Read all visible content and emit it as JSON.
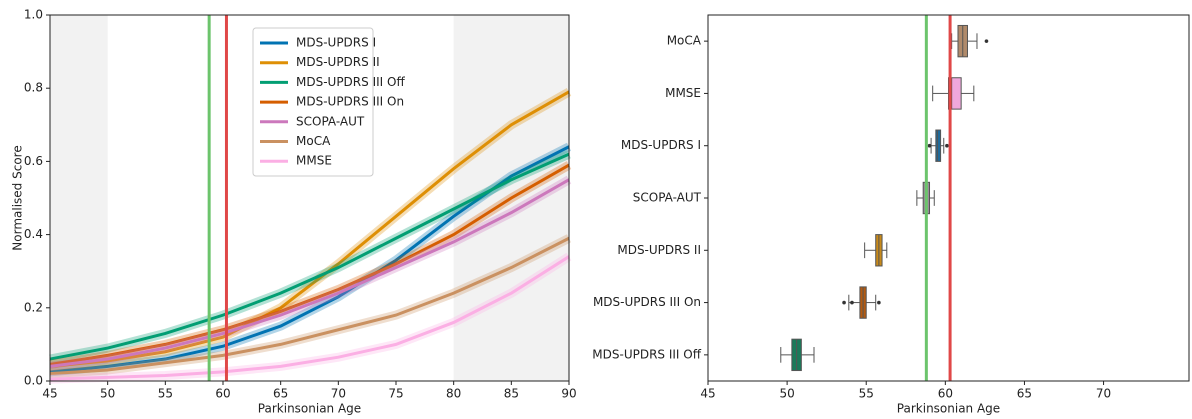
{
  "chart_data": [
    {
      "type": "line",
      "xlabel": "Parkinsonian Age",
      "ylabel": "Normalised Score",
      "x": [
        45,
        50,
        55,
        60,
        65,
        70,
        75,
        80,
        85,
        90
      ],
      "series": [
        {
          "name": "MDS-UPDRS I",
          "color": "#0173b2",
          "values": [
            0.025,
            0.04,
            0.06,
            0.095,
            0.15,
            0.23,
            0.33,
            0.45,
            0.56,
            0.64
          ]
        },
        {
          "name": "MDS-UPDRS II",
          "color": "#de8f05",
          "values": [
            0.04,
            0.055,
            0.08,
            0.12,
            0.2,
            0.32,
            0.45,
            0.58,
            0.7,
            0.79
          ]
        },
        {
          "name": "MDS-UPDRS III Off",
          "color": "#029e73",
          "values": [
            0.06,
            0.09,
            0.13,
            0.18,
            0.24,
            0.31,
            0.39,
            0.47,
            0.55,
            0.62
          ]
        },
        {
          "name": "MDS-UPDRS III On",
          "color": "#d55e00",
          "values": [
            0.045,
            0.07,
            0.1,
            0.14,
            0.19,
            0.25,
            0.32,
            0.4,
            0.5,
            0.59
          ]
        },
        {
          "name": "SCOPA-AUT",
          "color": "#cc78bc",
          "values": [
            0.04,
            0.06,
            0.09,
            0.13,
            0.18,
            0.24,
            0.31,
            0.38,
            0.46,
            0.55
          ]
        },
        {
          "name": "MoCA",
          "color": "#ca9161",
          "values": [
            0.02,
            0.03,
            0.05,
            0.07,
            0.1,
            0.14,
            0.18,
            0.24,
            0.31,
            0.39
          ]
        },
        {
          "name": "MMSE",
          "color": "#fbafe4",
          "values": [
            0.005,
            0.01,
            0.015,
            0.025,
            0.04,
            0.065,
            0.1,
            0.16,
            0.24,
            0.34
          ]
        }
      ],
      "xlim": [
        45,
        90
      ],
      "ylim": [
        0,
        1
      ],
      "xticks": [
        45,
        50,
        55,
        60,
        65,
        70,
        75,
        80,
        85,
        90
      ],
      "yticks": [
        {
          "value": 0,
          "label": "0.0"
        },
        {
          "value": 0.2,
          "label": "0.2"
        },
        {
          "value": 0.4,
          "label": "0.4"
        },
        {
          "value": 0.6,
          "label": "0.6"
        },
        {
          "value": 0.8,
          "label": "0.8"
        },
        {
          "value": 1,
          "label": "1.0"
        }
      ],
      "shaded_ranges": [
        [
          45,
          50
        ],
        [
          80,
          90
        ]
      ],
      "vlines": [
        {
          "value": 58.8,
          "color": "#6cc46c"
        },
        {
          "value": 60.3,
          "color": "#e04848"
        }
      ]
    },
    {
      "type": "boxplot",
      "xlabel": "Parkinsonian Age",
      "categories": [
        "MoCA",
        "MMSE",
        "MDS-UPDRS I",
        "SCOPA-AUT",
        "MDS-UPDRS II",
        "MDS-UPDRS III On",
        "MDS-UPDRS III Off"
      ],
      "colors": [
        "#b08a6a",
        "#f0a8dc",
        "#1f6a9a",
        "#9a8a9a",
        "#c88a1a",
        "#b35a10",
        "#1a7a5a"
      ],
      "boxes": [
        {
          "whislo": 60.4,
          "q1": 60.8,
          "med": 61.1,
          "q3": 61.4,
          "whishi": 62.0,
          "fliers": [
            62.6
          ]
        },
        {
          "whislo": 59.2,
          "q1": 60.2,
          "med": 60.4,
          "q3": 61.0,
          "whishi": 61.8,
          "fliers": []
        },
        {
          "whislo": 59.1,
          "q1": 59.4,
          "med": 59.5,
          "q3": 59.7,
          "whishi": 59.9,
          "fliers": [
            59.0,
            60.1
          ]
        },
        {
          "whislo": 58.2,
          "q1": 58.6,
          "med": 58.8,
          "q3": 59.0,
          "whishi": 59.3,
          "fliers": []
        },
        {
          "whislo": 54.9,
          "q1": 55.6,
          "med": 55.8,
          "q3": 56.0,
          "whishi": 56.3,
          "fliers": []
        },
        {
          "whislo": 53.9,
          "q1": 54.6,
          "med": 54.8,
          "q3": 55.0,
          "whishi": 55.6,
          "fliers": [
            53.6,
            54.1,
            55.8
          ]
        },
        {
          "whislo": 49.6,
          "q1": 50.3,
          "med": 50.6,
          "q3": 50.9,
          "whishi": 51.7,
          "fliers": []
        }
      ],
      "xlim": [
        45,
        75.4
      ],
      "xticks": [
        45,
        50,
        55,
        60,
        65,
        70
      ],
      "vlines": [
        {
          "value": 58.8,
          "color": "#6cc46c"
        },
        {
          "value": 60.3,
          "color": "#e04848"
        }
      ]
    }
  ]
}
